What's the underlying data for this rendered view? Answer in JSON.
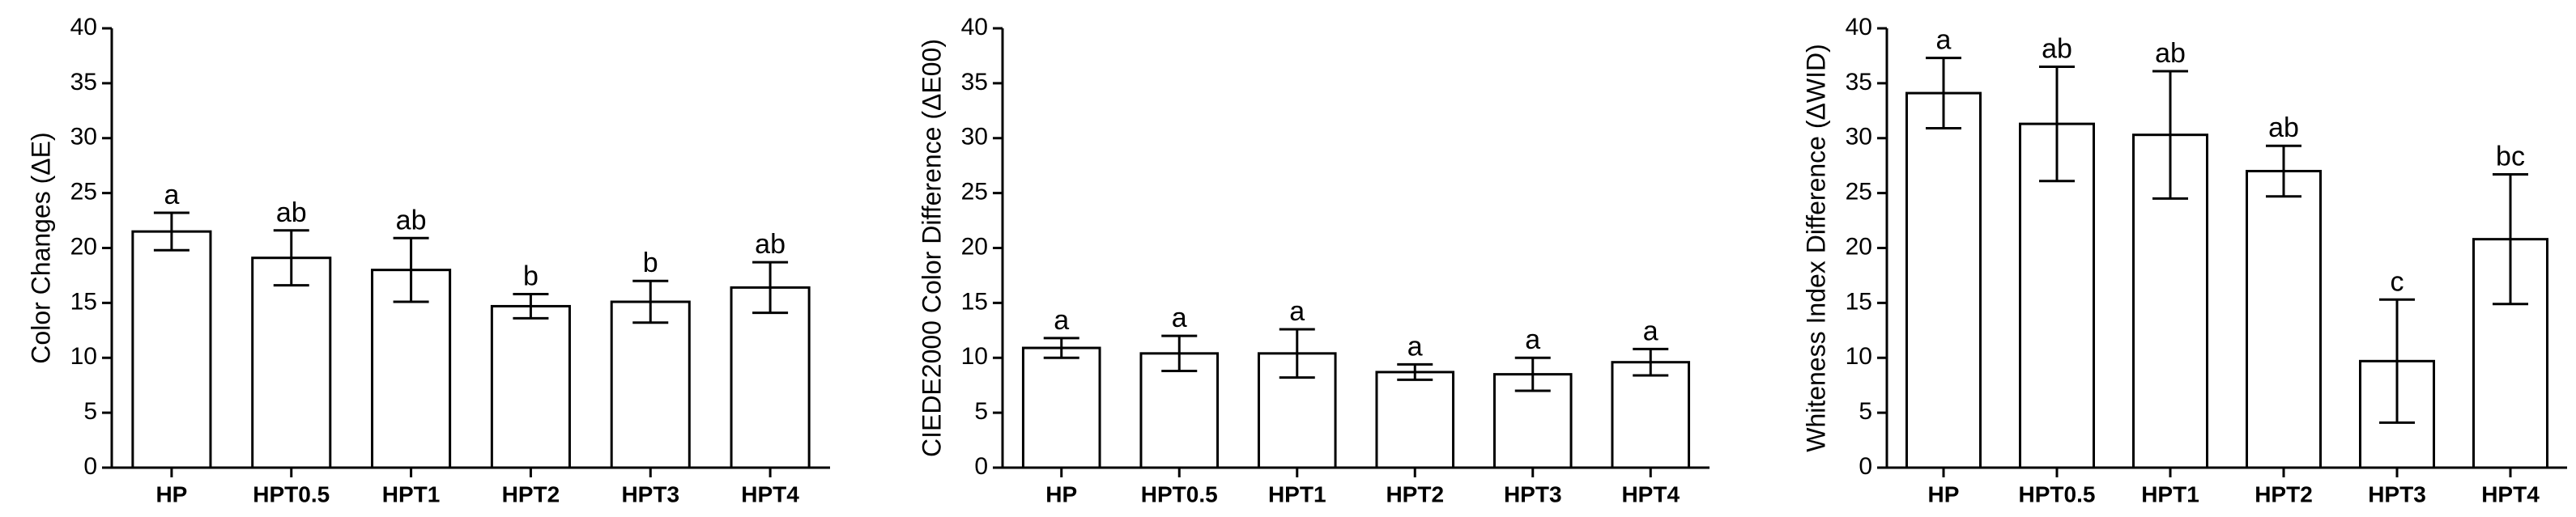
{
  "chart_data": [
    {
      "type": "bar",
      "y_label": "Color Changes (ΔE)",
      "categories": [
        "HP",
        "HPT0.5",
        "HPT1",
        "HPT2",
        "HPT3",
        "HPT4"
      ],
      "values": [
        21.5,
        19.1,
        18.0,
        14.7,
        15.1,
        16.4
      ],
      "errors": [
        1.7,
        2.5,
        2.9,
        1.1,
        1.9,
        2.3
      ],
      "letters": [
        "a",
        "ab",
        "ab",
        "b",
        "b",
        "ab"
      ],
      "color": "#ffffff",
      "ylim": [
        0,
        40
      ],
      "yticks": [
        0,
        5,
        10,
        15,
        20,
        25,
        30,
        35,
        40
      ]
    },
    {
      "type": "bar",
      "y_label": "CIEDE2000 Color Difference (ΔE00)",
      "categories": [
        "HP",
        "HPT0.5",
        "HPT1",
        "HPT2",
        "HPT3",
        "HPT4"
      ],
      "values": [
        10.9,
        10.4,
        10.4,
        8.7,
        8.5,
        9.6
      ],
      "errors": [
        0.9,
        1.6,
        2.2,
        0.7,
        1.5,
        1.2
      ],
      "letters": [
        "a",
        "a",
        "a",
        "a",
        "a",
        "a"
      ],
      "color": "#ffffff",
      "ylim": [
        0,
        40
      ],
      "yticks": [
        0,
        5,
        10,
        15,
        20,
        25,
        30,
        35,
        40
      ]
    },
    {
      "type": "bar",
      "y_label": "Whiteness Index Difference (ΔWID)",
      "categories": [
        "HP",
        "HPT0.5",
        "HPT1",
        "HPT2",
        "HPT3",
        "HPT4"
      ],
      "values": [
        34.1,
        31.3,
        30.3,
        27.0,
        9.7,
        20.8
      ],
      "errors": [
        3.2,
        5.2,
        5.8,
        2.3,
        5.6,
        5.9
      ],
      "letters": [
        "a",
        "ab",
        "ab",
        "ab",
        "c",
        "bc"
      ],
      "color": "#ffffff",
      "ylim": [
        0,
        40
      ],
      "yticks": [
        0,
        5,
        10,
        15,
        20,
        25,
        30,
        35,
        40
      ]
    }
  ]
}
